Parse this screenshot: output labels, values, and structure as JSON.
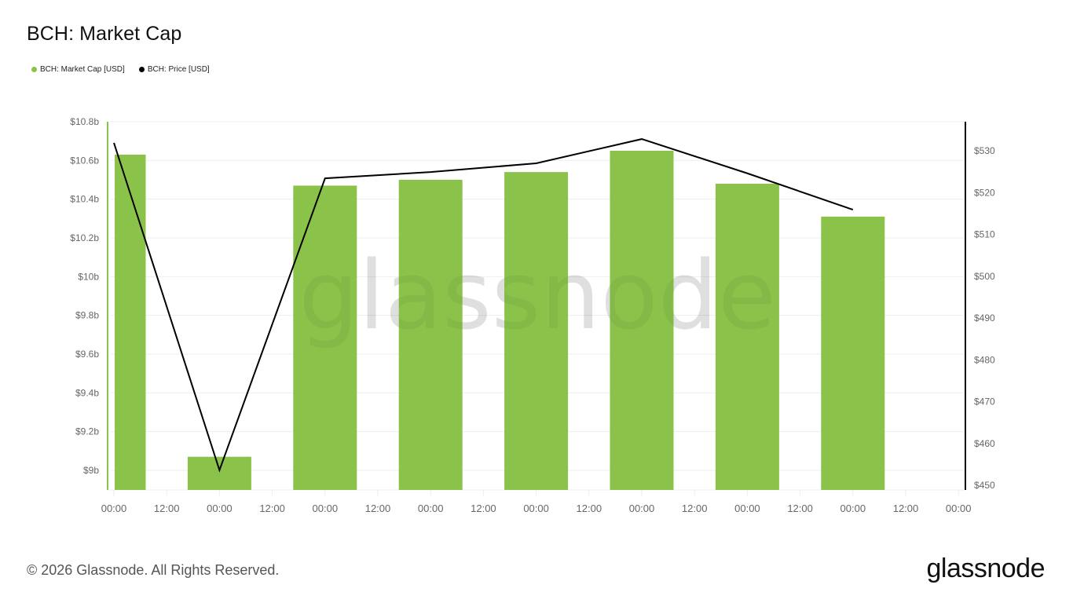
{
  "title": "BCH: Market Cap",
  "legend": [
    {
      "label": "BCH: Market Cap [USD]",
      "color": "#8bc34a",
      "shape": "dot"
    },
    {
      "label": "BCH: Price [USD]",
      "color": "#000000",
      "shape": "dot"
    }
  ],
  "watermark": "glassnode",
  "footer": {
    "copyright": "© 2026 Glassnode. All Rights Reserved.",
    "logo": "glassnode"
  },
  "colors": {
    "bar": "#8bc34a",
    "line": "#000000",
    "grid": "#eeeeee",
    "left_axis": "#8bc34a",
    "right_axis": "#000000",
    "tick_text": "#666666"
  },
  "chart_data": {
    "type": "bar+line",
    "title": "BCH: Market Cap",
    "x_tick_labels": [
      "00:00",
      "12:00",
      "00:00",
      "12:00",
      "00:00",
      "12:00",
      "00:00",
      "12:00",
      "00:00",
      "12:00",
      "00:00",
      "12:00",
      "00:00",
      "12:00",
      "00:00",
      "12:00",
      "00:00"
    ],
    "categories": [
      "00:00",
      "00:00",
      "00:00",
      "00:00",
      "00:00",
      "00:00",
      "00:00",
      "00:00"
    ],
    "series": [
      {
        "name": "BCH: Market Cap [USD]",
        "type": "bar",
        "axis": "left",
        "color": "#8bc34a",
        "values": [
          10.63,
          9.07,
          10.47,
          10.5,
          10.54,
          10.65,
          10.48,
          10.31
        ],
        "unit": "billion USD"
      },
      {
        "name": "BCH: Price [USD]",
        "type": "line",
        "axis": "right",
        "color": "#000000",
        "values": [
          531.9,
          453.6,
          523.4,
          524.9,
          527.0,
          532.8,
          524.6,
          515.9
        ],
        "unit": "USD"
      }
    ],
    "left_axis": {
      "ticks": [
        "$10.8b",
        "$10.6b",
        "$10.4b",
        "$10.2b",
        "$10b",
        "$9.8b",
        "$9.6b",
        "$9.4b",
        "$9.2b",
        "$9b"
      ],
      "range": [
        8.9,
        10.8
      ]
    },
    "right_axis": {
      "ticks": [
        "$530",
        "$520",
        "$510",
        "$500",
        "$490",
        "$480",
        "$470",
        "$460",
        "$450"
      ],
      "range": [
        450,
        534.6
      ]
    },
    "xlabel": "",
    "ylabel_left": "",
    "ylabel_right": "",
    "grid": true,
    "legend_position": "top-left"
  }
}
